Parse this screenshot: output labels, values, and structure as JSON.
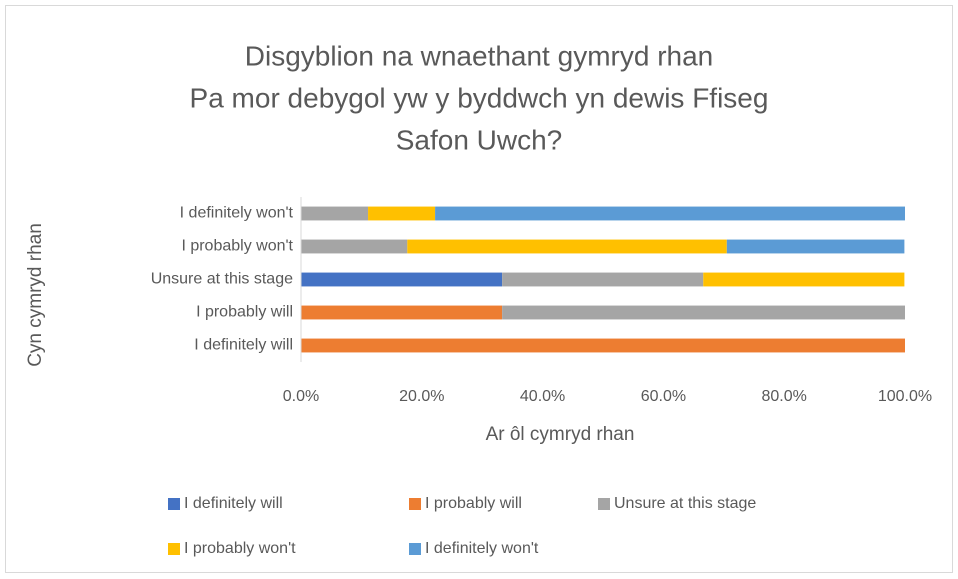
{
  "chart_data": {
    "type": "stacked-bar-horizontal",
    "title": [
      "Disgyblion na wnaethant gymryd rhan",
      "Pa mor debygol yw y byddwch yn dewis Ffiseg",
      "Safon Uwch?"
    ],
    "x_label": "Ar ôl cymryd rhan",
    "y_label": "Cyn cymryd rhan",
    "categories": [
      "I definitely will",
      "I probably will",
      "Unsure at this stage",
      "I probably won't",
      "I definitely won't"
    ],
    "series": [
      {
        "name": "I definitely will",
        "color": "#4472c4",
        "values": [
          0,
          0,
          33.3,
          0,
          0
        ]
      },
      {
        "name": "I probably will",
        "color": "#ed7d31",
        "values": [
          100,
          33.3,
          0,
          0,
          0
        ]
      },
      {
        "name": "Unsure at this stage",
        "color": "#a5a5a5",
        "values": [
          0,
          66.7,
          33.3,
          17.6,
          11.1
        ]
      },
      {
        "name": "I probably won't",
        "color": "#ffc000",
        "values": [
          0,
          0,
          33.3,
          52.9,
          11.1
        ]
      },
      {
        "name": "I definitely won't",
        "color": "#5b9bd5",
        "values": [
          0,
          0,
          0,
          29.4,
          77.8
        ]
      }
    ],
    "xlim": [
      0,
      100
    ],
    "xticks": [
      {
        "value": 0,
        "label": "0.0%"
      },
      {
        "value": 20,
        "label": "20.0%"
      },
      {
        "value": 40,
        "label": "40.0%"
      },
      {
        "value": 60,
        "label": "60.0%"
      },
      {
        "value": 80,
        "label": "80.0%"
      },
      {
        "value": 100,
        "label": "100.0%"
      }
    ],
    "grid": false,
    "legend": "bottom"
  }
}
